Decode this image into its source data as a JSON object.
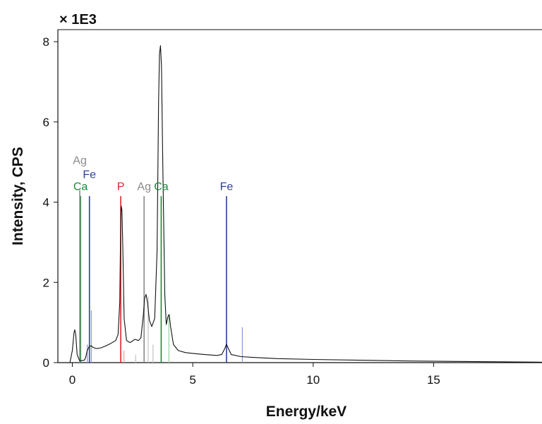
{
  "chart_data": {
    "type": "line",
    "multiplier_label": "× 1E3",
    "xlabel": "Energy/keV",
    "ylabel": "Intensity, CPS",
    "xlim": [
      -0.6,
      19.5
    ],
    "ylim": [
      0,
      8.3
    ],
    "x_ticks": [
      0,
      5,
      10,
      15
    ],
    "y_ticks": [
      0,
      2,
      4,
      6,
      8
    ],
    "colors": {
      "spectrum": "#111111",
      "Ca": "#1a8a3a",
      "Fe": "#2b3f9a",
      "P": "#e0242a",
      "Ag": "#8a8a8a",
      "Ca_minor": "#9ad8a6",
      "Fe_minor": "#8f9bd6",
      "P_minor": "#f0a0a0",
      "Ag_minor": "#c6c6c6"
    },
    "spectrum": {
      "name": "",
      "points": [
        [
          -0.1,
          0.0
        ],
        [
          0.0,
          0.3
        ],
        [
          0.07,
          0.75
        ],
        [
          0.1,
          0.82
        ],
        [
          0.14,
          0.7
        ],
        [
          0.2,
          0.2
        ],
        [
          0.3,
          0.05
        ],
        [
          0.4,
          0.05
        ],
        [
          0.5,
          0.06
        ],
        [
          0.55,
          0.12
        ],
        [
          0.62,
          0.3
        ],
        [
          0.7,
          0.4
        ],
        [
          0.78,
          0.42
        ],
        [
          0.86,
          0.38
        ],
        [
          1.0,
          0.35
        ],
        [
          1.2,
          0.37
        ],
        [
          1.4,
          0.42
        ],
        [
          1.6,
          0.48
        ],
        [
          1.8,
          0.55
        ],
        [
          1.9,
          0.7
        ],
        [
          1.97,
          1.5
        ],
        [
          2.01,
          3.6
        ],
        [
          2.03,
          3.9
        ],
        [
          2.06,
          3.8
        ],
        [
          2.1,
          2.8
        ],
        [
          2.15,
          1.1
        ],
        [
          2.25,
          0.55
        ],
        [
          2.4,
          0.5
        ],
        [
          2.6,
          0.58
        ],
        [
          2.75,
          0.55
        ],
        [
          2.85,
          0.62
        ],
        [
          2.95,
          1.2
        ],
        [
          3.0,
          1.6
        ],
        [
          3.06,
          1.7
        ],
        [
          3.12,
          1.5
        ],
        [
          3.2,
          1.05
        ],
        [
          3.3,
          0.9
        ],
        [
          3.42,
          1.1
        ],
        [
          3.52,
          2.8
        ],
        [
          3.58,
          6.5
        ],
        [
          3.62,
          7.7
        ],
        [
          3.66,
          7.9
        ],
        [
          3.7,
          7.4
        ],
        [
          3.76,
          4.8
        ],
        [
          3.84,
          1.7
        ],
        [
          3.9,
          0.95
        ],
        [
          3.97,
          1.15
        ],
        [
          4.02,
          1.2
        ],
        [
          4.08,
          0.9
        ],
        [
          4.2,
          0.45
        ],
        [
          4.4,
          0.3
        ],
        [
          4.7,
          0.25
        ],
        [
          5.0,
          0.23
        ],
        [
          5.5,
          0.2
        ],
        [
          6.0,
          0.18
        ],
        [
          6.2,
          0.2
        ],
        [
          6.33,
          0.35
        ],
        [
          6.4,
          0.46
        ],
        [
          6.47,
          0.36
        ],
        [
          6.6,
          0.2
        ],
        [
          7.0,
          0.15
        ],
        [
          7.5,
          0.13
        ],
        [
          8.5,
          0.1
        ],
        [
          10.0,
          0.08
        ],
        [
          12.0,
          0.06
        ],
        [
          14.0,
          0.04
        ],
        [
          16.0,
          0.03
        ],
        [
          19.5,
          0.01
        ]
      ]
    },
    "element_lines": [
      {
        "element": "Ca",
        "energy": 0.34,
        "height": 4.15,
        "label": "Ca",
        "label_height": 4.3,
        "role": "major"
      },
      {
        "element": "Fe",
        "energy": 0.71,
        "height": 4.15,
        "label": "Fe",
        "label_height": 4.6,
        "role": "major"
      },
      {
        "element": "Ag",
        "energy": 0.31,
        "height": 4.3,
        "label": "Ag",
        "label_height": 4.95,
        "role": "major"
      },
      {
        "element": "Fe",
        "energy": 0.79,
        "height": 1.3,
        "label": "",
        "role": "minor"
      },
      {
        "element": "Fe",
        "energy": 0.62,
        "height": 0.45,
        "label": "",
        "role": "minor"
      },
      {
        "element": "P",
        "energy": 2.01,
        "height": 4.15,
        "label": "P",
        "label_height": 4.3,
        "role": "major"
      },
      {
        "element": "P",
        "energy": 2.14,
        "height": 0.3,
        "label": "",
        "role": "minor"
      },
      {
        "element": "Ag",
        "energy": 2.98,
        "height": 4.15,
        "label": "Ag",
        "label_height": 4.3,
        "role": "major"
      },
      {
        "element": "Ag",
        "energy": 3.15,
        "height": 1.65,
        "label": "",
        "role": "minor"
      },
      {
        "element": "Ag",
        "energy": 3.35,
        "height": 0.45,
        "label": "",
        "role": "minor"
      },
      {
        "element": "Ag",
        "energy": 2.63,
        "height": 0.2,
        "label": "",
        "role": "minor"
      },
      {
        "element": "Ca",
        "energy": 3.69,
        "height": 4.15,
        "label": "Ca",
        "label_height": 4.3,
        "role": "major"
      },
      {
        "element": "Ca",
        "energy": 4.01,
        "height": 1.2,
        "label": "",
        "role": "minor"
      },
      {
        "element": "Fe",
        "energy": 6.4,
        "height": 4.15,
        "label": "Fe",
        "label_height": 4.3,
        "role": "major"
      },
      {
        "element": "Fe",
        "energy": 7.06,
        "height": 0.88,
        "label": "",
        "role": "minor"
      }
    ],
    "grid": false,
    "legend": "none"
  }
}
